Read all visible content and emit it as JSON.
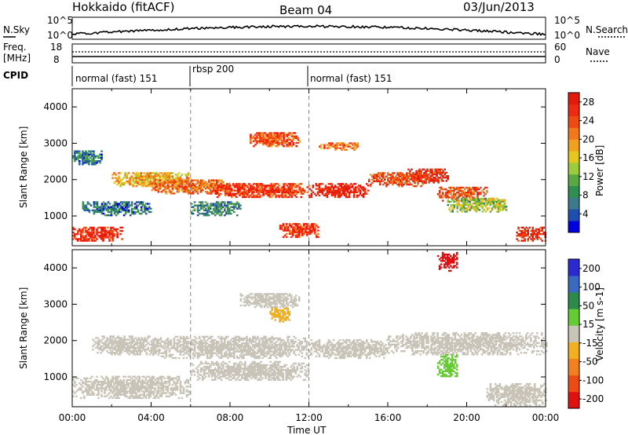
{
  "header": {
    "station": "Hokkaido (fitACF)",
    "beam": "Beam 04",
    "date": "03/Jun/2013"
  },
  "noise_panel": {
    "left_label": "N.Sky",
    "right_label": "N.Search",
    "left_ticks": [
      "10^5",
      "10^0"
    ],
    "right_ticks": [
      "10^5",
      "10^0"
    ]
  },
  "freq_panel": {
    "left_label": "Freq.",
    "left_unit": "[MHz]",
    "right_label": "Nave",
    "left_ticks": [
      "18",
      "8"
    ],
    "right_ticks": [
      "60",
      "0"
    ]
  },
  "cpid": {
    "label": "CPID",
    "segments": [
      {
        "name": "normal (fast) 151",
        "start_h": 0,
        "end_h": 6
      },
      {
        "name": "rbsp 200",
        "start_h": 6,
        "end_h": 12
      },
      {
        "name": "normal (fast) 151",
        "start_h": 12,
        "end_h": 24
      }
    ]
  },
  "x_axis": {
    "label": "Time UT",
    "ticks": [
      "00:00",
      "04:00",
      "08:00",
      "12:00",
      "16:00",
      "20:00",
      "00:00"
    ]
  },
  "power_panel": {
    "ylabel": "Slant Range [km]",
    "yticks": [
      "1000",
      "2000",
      "3000",
      "4000"
    ],
    "colorbar_label": "Power [dB]",
    "colorbar_ticks": [
      "4",
      "8",
      "12",
      "16",
      "20",
      "24",
      "28"
    ],
    "colors": [
      "#0000e0",
      "#1e4fb0",
      "#3c7a8c",
      "#2f8f50",
      "#5aa845",
      "#9ccc3c",
      "#e5c81e",
      "#f2a020",
      "#f07a1a",
      "#f04a14",
      "#ee2a10",
      "#e61a0a"
    ]
  },
  "velocity_panel": {
    "ylabel": "Slant Range [km]",
    "yticks": [
      "1000",
      "2000",
      "3000",
      "4000"
    ],
    "colorbar_label": "Velocity [m s-1]",
    "colorbar_ticks": [
      "200",
      "100",
      "50",
      "15",
      "-15",
      "-50",
      "-100",
      "-200"
    ],
    "colors": [
      "#2a2ad0",
      "#3a6ac0",
      "#2e8a4a",
      "#66cc33",
      "#c8c4b8",
      "#f0b020",
      "#f08020",
      "#ee4a14",
      "#e01010"
    ]
  },
  "chart_data": [
    {
      "type": "heatmap",
      "title": "Power",
      "xlabel": "Time UT",
      "ylabel": "Slant Range [km]",
      "colorbar": "Power [dB]",
      "xlim": [
        0,
        24
      ],
      "ylim": [
        180,
        4500
      ],
      "clim": [
        0,
        30
      ],
      "regions": [
        {
          "t0": 0,
          "t1": 2.5,
          "r0": 300,
          "r1": 700,
          "v": 27
        },
        {
          "t0": 0.5,
          "t1": 4,
          "r0": 1000,
          "r1": 1400,
          "v": 6
        },
        {
          "t0": 0,
          "t1": 1.5,
          "r0": 2400,
          "r1": 2800,
          "v": 7
        },
        {
          "t0": 2,
          "t1": 6,
          "r0": 1800,
          "r1": 2200,
          "v": 18
        },
        {
          "t0": 4,
          "t1": 8,
          "r0": 1600,
          "r1": 2000,
          "v": 22
        },
        {
          "t0": 6,
          "t1": 8.5,
          "r0": 1000,
          "r1": 1400,
          "v": 8
        },
        {
          "t0": 7,
          "t1": 12,
          "r0": 1500,
          "r1": 1900,
          "v": 26
        },
        {
          "t0": 9,
          "t1": 11.5,
          "r0": 2900,
          "r1": 3300,
          "v": 24
        },
        {
          "t0": 10.5,
          "t1": 12.5,
          "r0": 400,
          "r1": 800,
          "v": 26
        },
        {
          "t0": 12,
          "t1": 15,
          "r0": 1500,
          "r1": 1900,
          "v": 28
        },
        {
          "t0": 12.5,
          "t1": 14.5,
          "r0": 2800,
          "r1": 3000,
          "v": 22
        },
        {
          "t0": 15,
          "t1": 18,
          "r0": 1800,
          "r1": 2200,
          "v": 24
        },
        {
          "t0": 17,
          "t1": 19,
          "r0": 1900,
          "r1": 2300,
          "v": 27
        },
        {
          "t0": 18.5,
          "t1": 21,
          "r0": 1400,
          "r1": 1800,
          "v": 24
        },
        {
          "t0": 19,
          "t1": 22,
          "r0": 1100,
          "r1": 1500,
          "v": 14
        },
        {
          "t0": 22.5,
          "t1": 24,
          "r0": 300,
          "r1": 700,
          "v": 27
        }
      ]
    },
    {
      "type": "heatmap",
      "title": "Velocity",
      "xlabel": "Time UT",
      "ylabel": "Slant Range [km]",
      "colorbar": "Velocity [m s-1]",
      "xlim": [
        0,
        24
      ],
      "ylim": [
        180,
        4500
      ],
      "clim": [
        -250,
        250
      ],
      "regions": [
        {
          "t0": 0,
          "t1": 6,
          "r0": 400,
          "r1": 1000,
          "v": 0
        },
        {
          "t0": 1,
          "t1": 4.5,
          "r0": 1600,
          "r1": 2100,
          "v": 0
        },
        {
          "t0": 4,
          "t1": 12,
          "r0": 1500,
          "r1": 2100,
          "v": 0
        },
        {
          "t0": 6,
          "t1": 12,
          "r0": 900,
          "r1": 1400,
          "v": 0
        },
        {
          "t0": 8.5,
          "t1": 11.5,
          "r0": 2900,
          "r1": 3300,
          "v": 0
        },
        {
          "t0": 10,
          "t1": 11,
          "r0": 2500,
          "r1": 2900,
          "v": -40
        },
        {
          "t0": 12,
          "t1": 16,
          "r0": 1500,
          "r1": 2000,
          "v": 0
        },
        {
          "t0": 16,
          "t1": 24,
          "r0": 1600,
          "r1": 2200,
          "v": 0
        },
        {
          "t0": 18.5,
          "t1": 19.5,
          "r0": 1000,
          "r1": 1600,
          "v": 30
        },
        {
          "t0": 21,
          "t1": 24,
          "r0": 200,
          "r1": 800,
          "v": 0
        },
        {
          "t0": 18.5,
          "t1": 19.5,
          "r0": 3900,
          "r1": 4400,
          "v": -200
        }
      ]
    }
  ]
}
